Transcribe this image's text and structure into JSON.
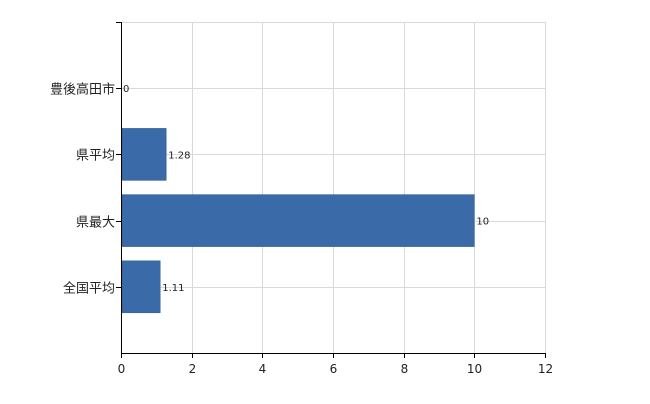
{
  "chart_data": {
    "type": "bar",
    "orientation": "horizontal",
    "categories": [
      "豊後高田市",
      "県平均",
      "県最大",
      "全国平均"
    ],
    "values": [
      0,
      1.28,
      10,
      1.11
    ],
    "data_labels": [
      "0",
      "1.28",
      "10",
      "1.11"
    ],
    "title": "",
    "xlabel": "",
    "ylabel": "",
    "xlim": [
      0,
      12
    ],
    "x_ticks": [
      0,
      2,
      4,
      6,
      8,
      10,
      12
    ],
    "x_tick_labels": [
      "0",
      "2",
      "4",
      "6",
      "8",
      "10",
      "12"
    ],
    "grid": true,
    "legend": "none",
    "bar_color": "#3a6aa7"
  }
}
